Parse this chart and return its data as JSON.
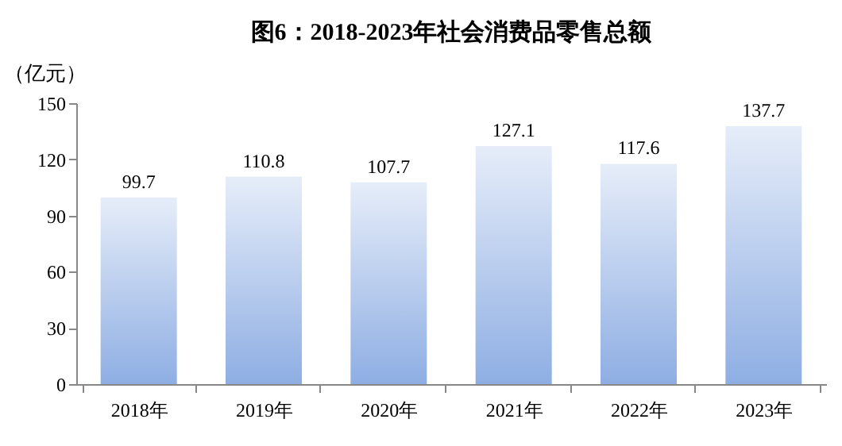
{
  "chart_data": {
    "type": "bar",
    "title": "图6：2018-2023年社会消费品零售总额",
    "ylabel": "（亿元）",
    "categories": [
      "2018年",
      "2019年",
      "2020年",
      "2021年",
      "2022年",
      "2023年"
    ],
    "values": [
      99.7,
      110.8,
      107.7,
      127.1,
      117.6,
      137.7
    ],
    "color": "#8eaee3",
    "ylim": [
      0,
      150
    ],
    "yticks": [
      0,
      30,
      60,
      90,
      120,
      150
    ],
    "data_labels": true
  }
}
